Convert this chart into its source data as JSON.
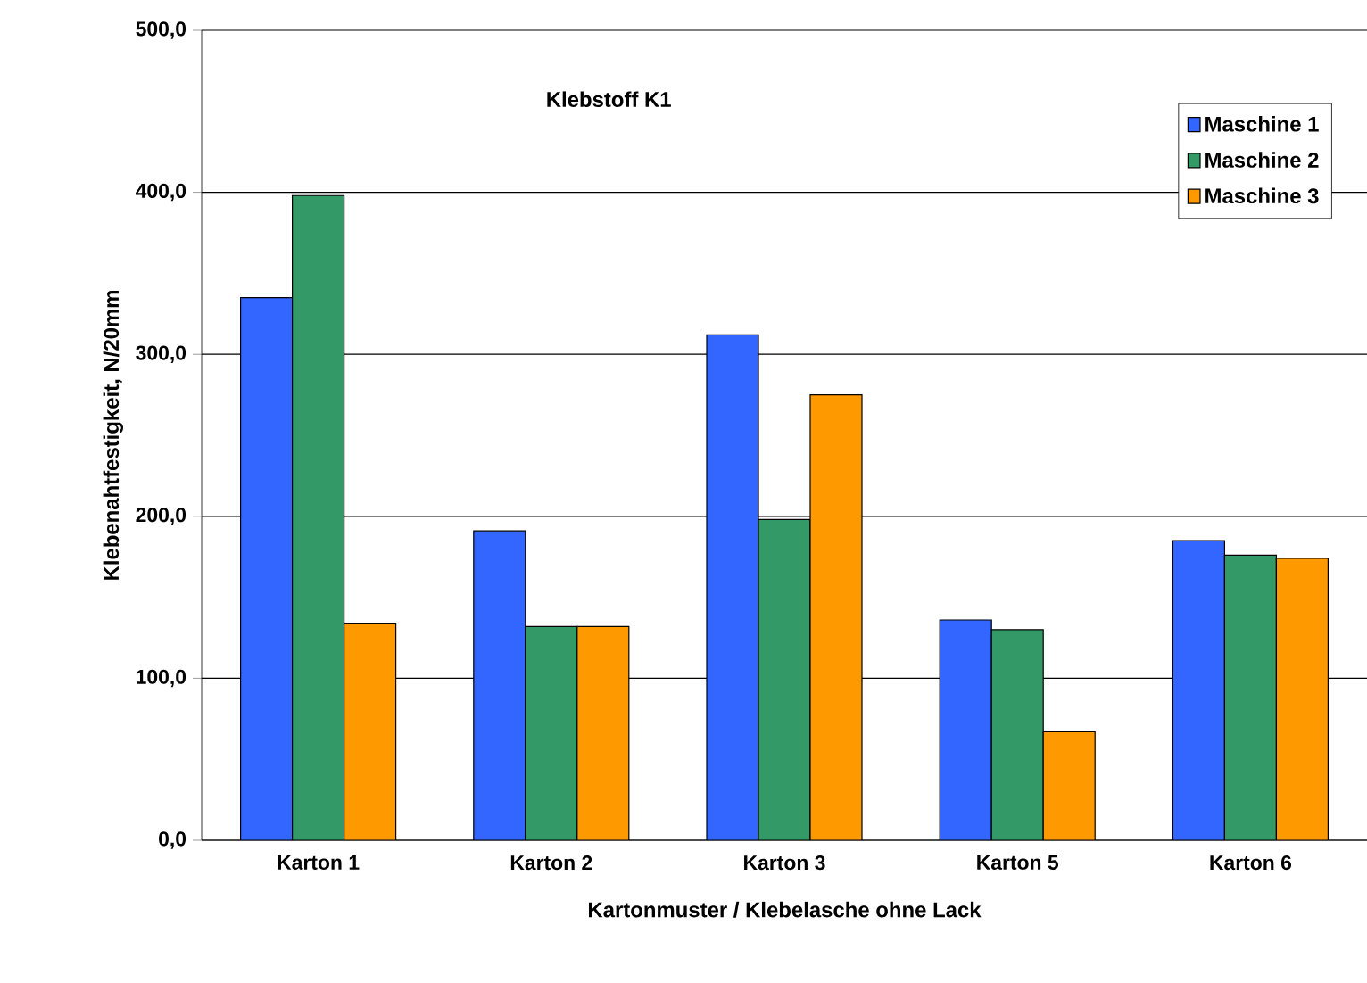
{
  "chart_data": {
    "type": "bar",
    "xlabel": "Kartonmuster / Klebelasche ohne Lack",
    "ylabel": "Klebenahtfestigkeit, N/20mm",
    "annotations": [
      "Klebstoff  K1"
    ],
    "categories": [
      "Karton 1",
      "Karton 2",
      "Karton 3",
      "Karton 5",
      "Karton 6"
    ],
    "series": [
      {
        "name": "Maschine 1",
        "color": "#3366ff",
        "values": [
          335,
          191,
          312,
          136,
          185
        ]
      },
      {
        "name": "Maschine 2",
        "color": "#339966",
        "values": [
          398,
          132,
          198,
          130,
          176
        ]
      },
      {
        "name": "Maschine 3",
        "color": "#ff9900",
        "values": [
          134,
          132,
          275,
          67,
          174
        ]
      }
    ],
    "ylim": [
      0,
      500
    ],
    "yticks": [
      {
        "value": 0,
        "label": "0,0"
      },
      {
        "value": 100,
        "label": "100,0"
      },
      {
        "value": 200,
        "label": "200,0"
      },
      {
        "value": 300,
        "label": "300,0"
      },
      {
        "value": 400,
        "label": "400,0"
      },
      {
        "value": 500,
        "label": "500,0"
      }
    ],
    "grid": "y",
    "legend": "top right"
  }
}
